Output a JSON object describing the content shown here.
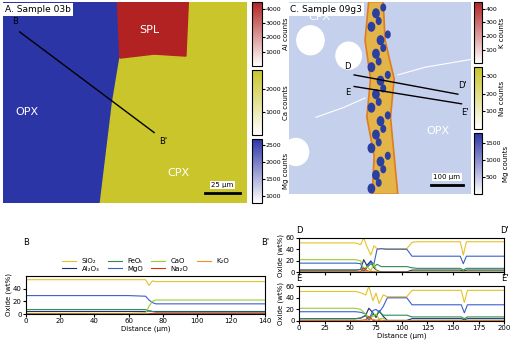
{
  "maps": [
    {
      "title": "A. Sample 03b",
      "phases": [
        "OPX",
        "SPL",
        "CPX"
      ],
      "profiles": [
        [
          "B",
          "B'"
        ]
      ],
      "scale_bar": "25 µm",
      "colorbars": [
        {
          "label": "Al counts",
          "color": "#b22222",
          "range": [
            0,
            4500
          ],
          "ticks": [
            1000,
            2000,
            3000,
            4000
          ]
        },
        {
          "label": "Ca counts",
          "color": "#c9c52a",
          "range": [
            0,
            2800
          ],
          "ticks": [
            1000,
            2000
          ]
        },
        {
          "label": "Mg counts",
          "color": "#2b35a6",
          "range": [
            800,
            2700
          ],
          "ticks": [
            1000,
            1500,
            2000,
            2500
          ]
        }
      ]
    },
    {
      "title": "C. Sample 09g3",
      "phases": [
        "CPX",
        "OPX"
      ],
      "profiles": [
        [
          "D",
          "D'"
        ],
        [
          "E",
          "E'"
        ]
      ],
      "scale_bar": "100 µm",
      "colorbars": [
        {
          "label": "K counts",
          "color": "#b22222",
          "range": [
            0,
            450
          ],
          "ticks": [
            100,
            200,
            300,
            400
          ]
        },
        {
          "label": "Na counts",
          "color": "#c9c52a",
          "range": [
            0,
            350
          ],
          "ticks": [
            100,
            200,
            300
          ]
        },
        {
          "label": "Mg counts",
          "color": "#2b35a6",
          "range": [
            0,
            1800
          ],
          "ticks": [
            500,
            1000,
            1500
          ]
        }
      ]
    }
  ],
  "chart_data": [
    {
      "type": "line",
      "endpoints": [
        "B",
        "B'"
      ],
      "x_label": "Distance (µm)",
      "y_label": "Oxide (wt%)",
      "xlim": [
        0,
        140
      ],
      "xticks": [
        0,
        20,
        40,
        60,
        80,
        100,
        120,
        140
      ],
      "ylim": [
        0,
        60
      ],
      "yticks": [
        0,
        20,
        40
      ],
      "legend": "lower center",
      "x": [
        0,
        10,
        20,
        30,
        40,
        50,
        60,
        70,
        72,
        74,
        76,
        80,
        90,
        100,
        110,
        120,
        130,
        140
      ],
      "series": [
        {
          "name": "SiO₂",
          "color": "#e6c229",
          "values": [
            54,
            54,
            54,
            54,
            54,
            54,
            54,
            54,
            45,
            52,
            51,
            51,
            51,
            51,
            51,
            51,
            51,
            51
          ]
        },
        {
          "name": "Al₂O₃",
          "color": "#1f2f6b",
          "values": [
            4,
            4,
            4,
            4,
            4,
            4,
            4,
            4,
            5,
            4,
            4,
            4,
            4,
            4,
            4,
            4,
            4,
            4
          ]
        },
        {
          "name": "FeOₜ",
          "color": "#2e8b57",
          "values": [
            7,
            7,
            7,
            7,
            7,
            7,
            7,
            7,
            5,
            4,
            3,
            3,
            3,
            3,
            3,
            3,
            3,
            3
          ]
        },
        {
          "name": "MgO",
          "color": "#3a5fcd",
          "values": [
            29,
            29,
            29,
            29,
            29,
            29,
            29,
            28,
            22,
            18,
            16,
            16,
            16,
            16,
            16,
            16,
            16,
            16
          ]
        },
        {
          "name": "CaO",
          "color": "#9acd32",
          "values": [
            1,
            1,
            1,
            1,
            1,
            1,
            1,
            2,
            12,
            20,
            22,
            22,
            22,
            22,
            22,
            22,
            22,
            22
          ]
        },
        {
          "name": "Na₂O",
          "color": "#d7301f",
          "values": [
            0,
            0,
            0,
            0,
            0,
            0,
            0,
            0,
            0.5,
            1,
            1,
            1,
            1,
            1,
            1,
            1,
            1,
            1
          ]
        },
        {
          "name": "K₂O",
          "color": "#f28e2b",
          "values": [
            0,
            0,
            0,
            0,
            0,
            0,
            0,
            0,
            0,
            0,
            0,
            0,
            0,
            0,
            0,
            0,
            0,
            0
          ]
        }
      ]
    },
    {
      "type": "line",
      "endpoints": [
        "D",
        "D'"
      ],
      "y_label": "Oxide (wt%)",
      "xlim": [
        0,
        200
      ],
      "xticks": [
        0,
        25,
        50,
        75,
        100,
        125,
        150,
        175,
        200
      ],
      "ylim": [
        0,
        60
      ],
      "yticks": [
        0,
        20,
        40,
        60
      ],
      "tick_labels": "y",
      "x": [
        0,
        20,
        40,
        55,
        60,
        63,
        66,
        70,
        73,
        76,
        80,
        85,
        90,
        95,
        100,
        105,
        110,
        115,
        130,
        150,
        157,
        160,
        163,
        170,
        185,
        200
      ],
      "series": [
        {
          "color": "#e6c229",
          "values": [
            51,
            51,
            51,
            51,
            48,
            60,
            45,
            30,
            46,
            41,
            41,
            41,
            41,
            41,
            41,
            41,
            52,
            53,
            53,
            53,
            53,
            30,
            53,
            53,
            53,
            53
          ]
        },
        {
          "color": "#1f2f6b",
          "values": [
            4,
            4,
            4,
            4,
            5,
            22,
            12,
            20,
            8,
            3,
            1,
            1,
            1,
            1,
            1,
            1,
            4,
            4,
            4,
            4,
            4,
            2,
            4,
            4,
            4,
            4
          ]
        },
        {
          "color": "#2e8b57",
          "values": [
            4,
            4,
            4,
            4,
            5,
            1,
            8,
            15,
            10,
            14,
            10,
            10,
            10,
            10,
            10,
            10,
            8,
            7,
            7,
            7,
            7,
            4,
            7,
            7,
            7,
            7
          ]
        },
        {
          "color": "#3a5fcd",
          "values": [
            16,
            16,
            16,
            16,
            15,
            2,
            10,
            18,
            15,
            40,
            41,
            40,
            40,
            40,
            40,
            40,
            28,
            28,
            28,
            28,
            28,
            15,
            28,
            28,
            28,
            28
          ]
        },
        {
          "color": "#9acd32",
          "values": [
            22,
            22,
            22,
            22,
            20,
            5,
            10,
            3,
            15,
            1,
            0,
            0,
            0,
            0,
            0,
            0,
            1,
            1,
            1,
            1,
            1,
            1,
            1,
            1,
            1,
            1
          ]
        },
        {
          "color": "#d7301f",
          "values": [
            1,
            1,
            1,
            1,
            1,
            8,
            3,
            1,
            2,
            0,
            0,
            0,
            0,
            0,
            0,
            0,
            0,
            0,
            0,
            0,
            0,
            0,
            0,
            0,
            0,
            0
          ]
        },
        {
          "color": "#f28e2b",
          "values": [
            0,
            0,
            0,
            0,
            0,
            1,
            2,
            0,
            1,
            0,
            0,
            0,
            0,
            0,
            0,
            0,
            0,
            0,
            0,
            0,
            0,
            0,
            0,
            0,
            0,
            0
          ]
        }
      ]
    },
    {
      "type": "line",
      "endpoints": [
        "E",
        "E'"
      ],
      "x_label": "Distance (µm)",
      "y_label": "Oxide (wt%)",
      "xlim": [
        0,
        200
      ],
      "xticks": [
        0,
        25,
        50,
        75,
        100,
        125,
        150,
        175,
        200
      ],
      "ylim": [
        0,
        60
      ],
      "yticks": [
        0,
        20,
        40,
        60
      ],
      "x": [
        0,
        20,
        40,
        55,
        60,
        65,
        68,
        72,
        75,
        78,
        82,
        86,
        90,
        95,
        100,
        105,
        110,
        130,
        150,
        158,
        161,
        164,
        175,
        200
      ],
      "series": [
        {
          "color": "#e6c229",
          "values": [
            51,
            51,
            51,
            51,
            49,
            45,
            60,
            35,
            48,
            30,
            45,
            42,
            42,
            42,
            42,
            42,
            53,
            53,
            53,
            53,
            32,
            53,
            53,
            53
          ]
        },
        {
          "color": "#1f2f6b",
          "values": [
            4,
            4,
            4,
            4,
            5,
            10,
            22,
            14,
            6,
            18,
            8,
            1,
            1,
            1,
            1,
            1,
            4,
            4,
            4,
            4,
            2,
            4,
            4,
            4
          ]
        },
        {
          "color": "#2e8b57",
          "values": [
            4,
            4,
            4,
            4,
            5,
            9,
            1,
            12,
            9,
            16,
            10,
            10,
            10,
            10,
            10,
            10,
            7,
            7,
            7,
            7,
            4,
            7,
            7,
            7
          ]
        },
        {
          "color": "#3a5fcd",
          "values": [
            16,
            16,
            16,
            16,
            15,
            12,
            2,
            18,
            20,
            15,
            25,
            40,
            40,
            40,
            40,
            40,
            28,
            28,
            28,
            28,
            14,
            28,
            28,
            28
          ]
        },
        {
          "color": "#9acd32",
          "values": [
            22,
            22,
            22,
            22,
            20,
            12,
            5,
            8,
            12,
            3,
            5,
            0,
            0,
            0,
            0,
            0,
            1,
            1,
            1,
            1,
            1,
            1,
            1,
            1
          ]
        },
        {
          "color": "#d7301f",
          "values": [
            1,
            1,
            1,
            1,
            1,
            2,
            8,
            1,
            1,
            1,
            1,
            0,
            0,
            0,
            0,
            0,
            0,
            0,
            0,
            0,
            0,
            0,
            0,
            0
          ]
        },
        {
          "color": "#f28e2b",
          "values": [
            0,
            0,
            0,
            0,
            0,
            1,
            1,
            3,
            1,
            2,
            0,
            0,
            0,
            0,
            0,
            0,
            0,
            0,
            0,
            0,
            0,
            0,
            0,
            0
          ]
        }
      ]
    }
  ]
}
